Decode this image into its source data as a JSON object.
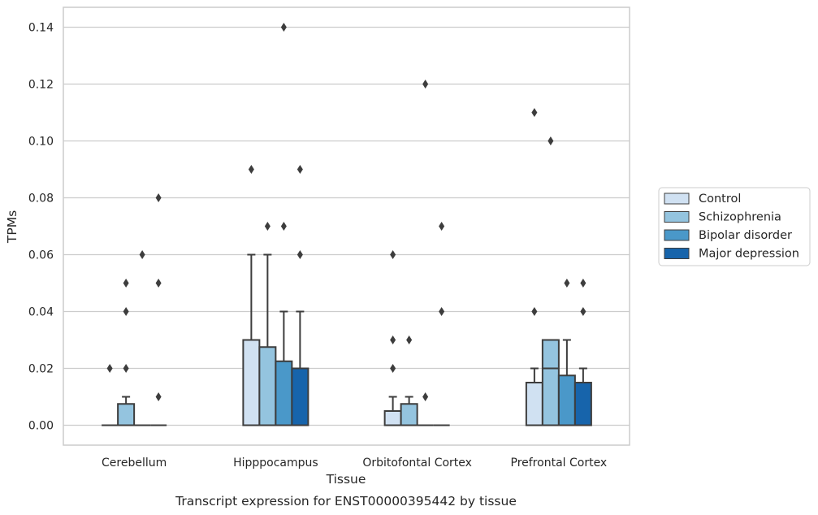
{
  "chart_data": {
    "type": "box",
    "title": "",
    "caption": "Transcript expression for ENST00000395442 by tissue",
    "xlabel": "Tissue",
    "ylabel": "TPMs",
    "ylim": [
      -0.007,
      0.147
    ],
    "yticks": [
      0.0,
      0.02,
      0.04,
      0.06,
      0.08,
      0.1,
      0.12,
      0.14
    ],
    "ytick_labels": [
      "0.00",
      "0.02",
      "0.04",
      "0.06",
      "0.08",
      "0.10",
      "0.12",
      "0.14"
    ],
    "grid": "horizontal",
    "legend_position": "outside-right",
    "categories": [
      "Cerebellum",
      "Hipppocampus",
      "Orbitofontal Cortex",
      "Prefrontal Cortex"
    ],
    "series": [
      {
        "name": "Control",
        "color": "#d0e1f2",
        "boxes": [
          {
            "q1": 0.0,
            "median": 0.0,
            "q3": 0.0,
            "whisker_low": 0.0,
            "whisker_high": 0.0,
            "outliers": [
              0.02
            ]
          },
          {
            "q1": 0.0,
            "median": 0.0,
            "q3": 0.03,
            "whisker_low": 0.0,
            "whisker_high": 0.06,
            "outliers": [
              0.09
            ]
          },
          {
            "q1": 0.0,
            "median": 0.0,
            "q3": 0.005,
            "whisker_low": 0.0,
            "whisker_high": 0.01,
            "outliers": [
              0.02,
              0.03,
              0.06
            ]
          },
          {
            "q1": 0.0,
            "median": 0.0,
            "q3": 0.015,
            "whisker_low": 0.0,
            "whisker_high": 0.02,
            "outliers": [
              0.04,
              0.11
            ]
          }
        ]
      },
      {
        "name": "Schizophrenia",
        "color": "#94c4df",
        "boxes": [
          {
            "q1": 0.0,
            "median": 0.0,
            "q3": 0.0075,
            "whisker_low": 0.0,
            "whisker_high": 0.01,
            "outliers": [
              0.02,
              0.04,
              0.05
            ]
          },
          {
            "q1": 0.0,
            "median": 0.0,
            "q3": 0.0275,
            "whisker_low": 0.0,
            "whisker_high": 0.06,
            "outliers": [
              0.07
            ]
          },
          {
            "q1": 0.0,
            "median": 0.0,
            "q3": 0.0075,
            "whisker_low": 0.0,
            "whisker_high": 0.01,
            "outliers": [
              0.03
            ]
          },
          {
            "q1": 0.0,
            "median": 0.02,
            "q3": 0.03,
            "whisker_low": 0.0,
            "whisker_high": 0.03,
            "outliers": [
              0.1
            ]
          }
        ]
      },
      {
        "name": "Bipolar disorder",
        "color": "#4a98c9",
        "boxes": [
          {
            "q1": 0.0,
            "median": 0.0,
            "q3": 0.0,
            "whisker_low": 0.0,
            "whisker_high": 0.0,
            "outliers": [
              0.06
            ]
          },
          {
            "q1": 0.0,
            "median": 0.0,
            "q3": 0.0225,
            "whisker_low": 0.0,
            "whisker_high": 0.04,
            "outliers": [
              0.07,
              0.14
            ]
          },
          {
            "q1": 0.0,
            "median": 0.0,
            "q3": 0.0,
            "whisker_low": 0.0,
            "whisker_high": 0.0,
            "outliers": [
              0.01,
              0.12
            ]
          },
          {
            "q1": 0.0,
            "median": 0.0,
            "q3": 0.0175,
            "whisker_low": 0.0,
            "whisker_high": 0.03,
            "outliers": [
              0.05
            ]
          }
        ]
      },
      {
        "name": "Major depression",
        "color": "#1764ab",
        "boxes": [
          {
            "q1": 0.0,
            "median": 0.0,
            "q3": 0.0,
            "whisker_low": 0.0,
            "whisker_high": 0.0,
            "outliers": [
              0.01,
              0.05,
              0.08
            ]
          },
          {
            "q1": 0.0,
            "median": 0.0,
            "q3": 0.02,
            "whisker_low": 0.0,
            "whisker_high": 0.04,
            "outliers": [
              0.06,
              0.09
            ]
          },
          {
            "q1": 0.0,
            "median": 0.0,
            "q3": 0.0,
            "whisker_low": 0.0,
            "whisker_high": 0.0,
            "outliers": [
              0.04,
              0.07
            ]
          },
          {
            "q1": 0.0,
            "median": 0.0,
            "q3": 0.015,
            "whisker_low": 0.0,
            "whisker_high": 0.02,
            "outliers": [
              0.04,
              0.05
            ]
          }
        ]
      }
    ]
  }
}
